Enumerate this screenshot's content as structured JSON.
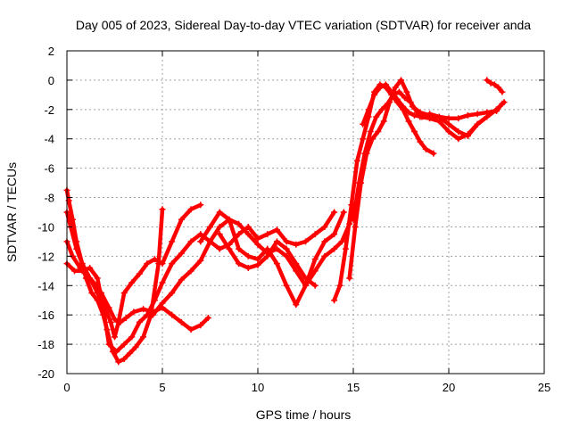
{
  "chart_data": {
    "type": "scatter",
    "title": "Day 005 of 2023, Sidereal Day-to-day VTEC variation (SDTVAR) for receiver anda",
    "xlabel": "GPS time / hours",
    "ylabel": "SDTVAR / TECUs",
    "xlim": [
      0,
      25
    ],
    "ylim": [
      -20,
      2
    ],
    "xticks": [
      0,
      5,
      10,
      15,
      20,
      25
    ],
    "yticks": [
      2,
      0,
      -2,
      -4,
      -6,
      -8,
      -10,
      -12,
      -14,
      -16,
      -18,
      -20
    ],
    "grid": true,
    "marker": "+",
    "color": "#ff0000",
    "series": [
      {
        "x": [
          0,
          0.1,
          0.3,
          0.5,
          0.8,
          1.0,
          1.3,
          1.6,
          1.9,
          2.1,
          2.4,
          2.7,
          3.0,
          3.3,
          3.6,
          4.0,
          4.4,
          4.8,
          5.0
        ],
        "y": [
          -7.5,
          -8.2,
          -9.5,
          -11.0,
          -12.5,
          -13.5,
          -14.5,
          -15.0,
          -16.0,
          -17.0,
          -18.5,
          -19.2,
          -19.0,
          -18.6,
          -18.2,
          -17.5,
          -16.0,
          -12.5,
          -8.8
        ]
      },
      {
        "x": [
          0,
          0.2,
          0.5,
          0.8,
          1.2,
          1.6,
          2.0,
          2.3,
          2.5,
          2.7,
          3.0,
          3.4,
          3.8,
          4.2,
          4.6,
          5.0,
          5.5,
          6.0,
          6.5,
          7.0
        ],
        "y": [
          -9.0,
          -10.0,
          -11.5,
          -12.5,
          -13.5,
          -14.5,
          -15.5,
          -16.5,
          -17.5,
          -16.5,
          -14.5,
          -13.8,
          -13.2,
          -12.5,
          -12.2,
          -12.5,
          -11.0,
          -9.5,
          -8.8,
          -8.5
        ]
      },
      {
        "x": [
          0,
          0.3,
          0.7,
          1.0,
          1.4,
          1.8,
          2.2,
          2.5,
          2.8,
          3.1,
          3.5,
          4.0,
          4.5,
          5.0,
          5.5,
          6.0,
          6.5,
          7.0,
          7.4
        ],
        "y": [
          -11.0,
          -12.0,
          -12.8,
          -13.2,
          -13.8,
          -14.5,
          -15.5,
          -16.3,
          -16.5,
          -16.2,
          -15.8,
          -15.6,
          -15.8,
          -15.5,
          -16.0,
          -16.5,
          -17.0,
          -16.7,
          -16.2
        ]
      },
      {
        "x": [
          0,
          0.4,
          0.8,
          1.2,
          1.6,
          1.9,
          2.2,
          2.6,
          3.0,
          3.4,
          3.8,
          4.2,
          4.6,
          5.0,
          5.5,
          6.0,
          6.5,
          7.0,
          7.5,
          8.0,
          8.5,
          9.0,
          9.5,
          10.0,
          10.5,
          11.0,
          11.5,
          12.0,
          12.5,
          13.0,
          13.5,
          14.0
        ],
        "y": [
          -12.5,
          -13.0,
          -13.0,
          -12.8,
          -13.5,
          -15.5,
          -18.0,
          -18.5,
          -18.0,
          -17.5,
          -16.5,
          -16.0,
          -15.0,
          -13.8,
          -12.5,
          -11.8,
          -11.0,
          -10.5,
          -11.0,
          -11.5,
          -11.2,
          -10.5,
          -10.0,
          -10.8,
          -10.5,
          -10.2,
          -11.0,
          -11.2,
          -11.0,
          -10.5,
          -10.0,
          -9.0
        ]
      },
      {
        "x": [
          4.5,
          5.0,
          5.5,
          6.0,
          6.5,
          7.0,
          7.5,
          8.0,
          8.5,
          9.0,
          9.5,
          10.0,
          10.5,
          11.0,
          11.5,
          12.0,
          12.5,
          13.0,
          13.5,
          14.0,
          14.4,
          14.8,
          15.0
        ],
        "y": [
          -16.0,
          -15.2,
          -14.5,
          -13.6,
          -13.0,
          -12.3,
          -11.0,
          -10.0,
          -9.5,
          -9.8,
          -10.5,
          -11.2,
          -11.8,
          -11.5,
          -12.0,
          -13.0,
          -14.0,
          -13.0,
          -12.0,
          -11.5,
          -11.0,
          -9.8,
          -8.5
        ]
      },
      {
        "x": [
          7.0,
          7.5,
          8.0,
          8.5,
          9.0,
          9.5,
          10.0,
          10.5,
          11.0,
          11.5,
          12.0,
          12.5,
          13.0,
          13.5,
          14.0,
          14.5
        ],
        "y": [
          -11.0,
          -10.0,
          -9.0,
          -9.5,
          -11.5,
          -12.0,
          -12.2,
          -11.5,
          -12.5,
          -14.0,
          -15.3,
          -14.0,
          -12.2,
          -11.0,
          -10.5,
          -9.0
        ]
      },
      {
        "x": [
          8.0,
          8.5,
          9.0,
          9.5,
          10.0,
          10.5,
          11.0,
          11.5,
          12.0,
          12.5,
          13.0
        ],
        "y": [
          -10.5,
          -11.5,
          -12.5,
          -12.8,
          -12.6,
          -12.0,
          -11.0,
          -11.5,
          -12.5,
          -13.5,
          -14.0
        ]
      },
      {
        "x": [
          14.0,
          14.3,
          14.6,
          14.9,
          15.2,
          15.5,
          15.8,
          16.1,
          16.4,
          16.7,
          17.0,
          17.3,
          17.6,
          17.9,
          18.2,
          18.5,
          18.8,
          19.2
        ],
        "y": [
          -15.0,
          -14.0,
          -11.5,
          -8.5,
          -5.5,
          -4.0,
          -2.5,
          -0.8,
          -0.3,
          -0.5,
          -1.0,
          -1.5,
          -2.0,
          -2.8,
          -3.5,
          -4.2,
          -4.7,
          -5.0
        ]
      },
      {
        "x": [
          14.8,
          15.1,
          15.4,
          15.7,
          16.0,
          16.3,
          16.6,
          16.9,
          17.2,
          17.5,
          17.8,
          18.1,
          18.5,
          19.0,
          19.5,
          20.0,
          20.5,
          21.0,
          21.5,
          22.0,
          22.5,
          22.8
        ],
        "y": [
          -13.5,
          -10.0,
          -7.0,
          -5.0,
          -4.0,
          -3.5,
          -2.8,
          -1.5,
          -0.5,
          0.0,
          -0.8,
          -1.8,
          -2.2,
          -2.4,
          -2.5,
          -2.6,
          -2.6,
          -2.4,
          -2.3,
          -2.2,
          -2.1,
          -1.6
        ]
      },
      {
        "x": [
          15.0,
          15.3,
          15.6,
          15.9,
          16.2,
          16.5,
          16.8,
          17.1,
          17.4,
          17.7,
          18.0,
          18.5,
          19.0,
          19.5,
          20.0,
          20.5,
          21.0,
          21.5,
          22.0,
          22.5,
          22.9
        ],
        "y": [
          -9.5,
          -7.0,
          -5.0,
          -3.5,
          -2.5,
          -2.0,
          -1.6,
          -1.0,
          -0.8,
          -1.2,
          -1.5,
          -2.5,
          -2.6,
          -2.8,
          -3.5,
          -4.0,
          -3.7,
          -3.0,
          -2.5,
          -2.0,
          -1.5
        ]
      },
      {
        "x": [
          15.5,
          15.8,
          16.1,
          16.4,
          16.7,
          17.0,
          17.3,
          17.6,
          17.9,
          18.2,
          18.6,
          19.0,
          19.5,
          20.0,
          20.5,
          21.0,
          21.5,
          22.0,
          22.5
        ],
        "y": [
          -3.0,
          -2.0,
          -1.0,
          -0.5,
          -0.3,
          -0.8,
          -1.3,
          -1.8,
          -2.2,
          -2.4,
          -2.5,
          -2.3,
          -2.5,
          -3.0,
          -3.5,
          -3.8,
          -3.0,
          -2.5,
          -2.0
        ]
      },
      {
        "x": [
          22.0,
          22.2,
          22.4,
          22.6,
          22.8
        ],
        "y": [
          0.0,
          -0.2,
          -0.3,
          -0.5,
          -0.8
        ]
      }
    ]
  }
}
